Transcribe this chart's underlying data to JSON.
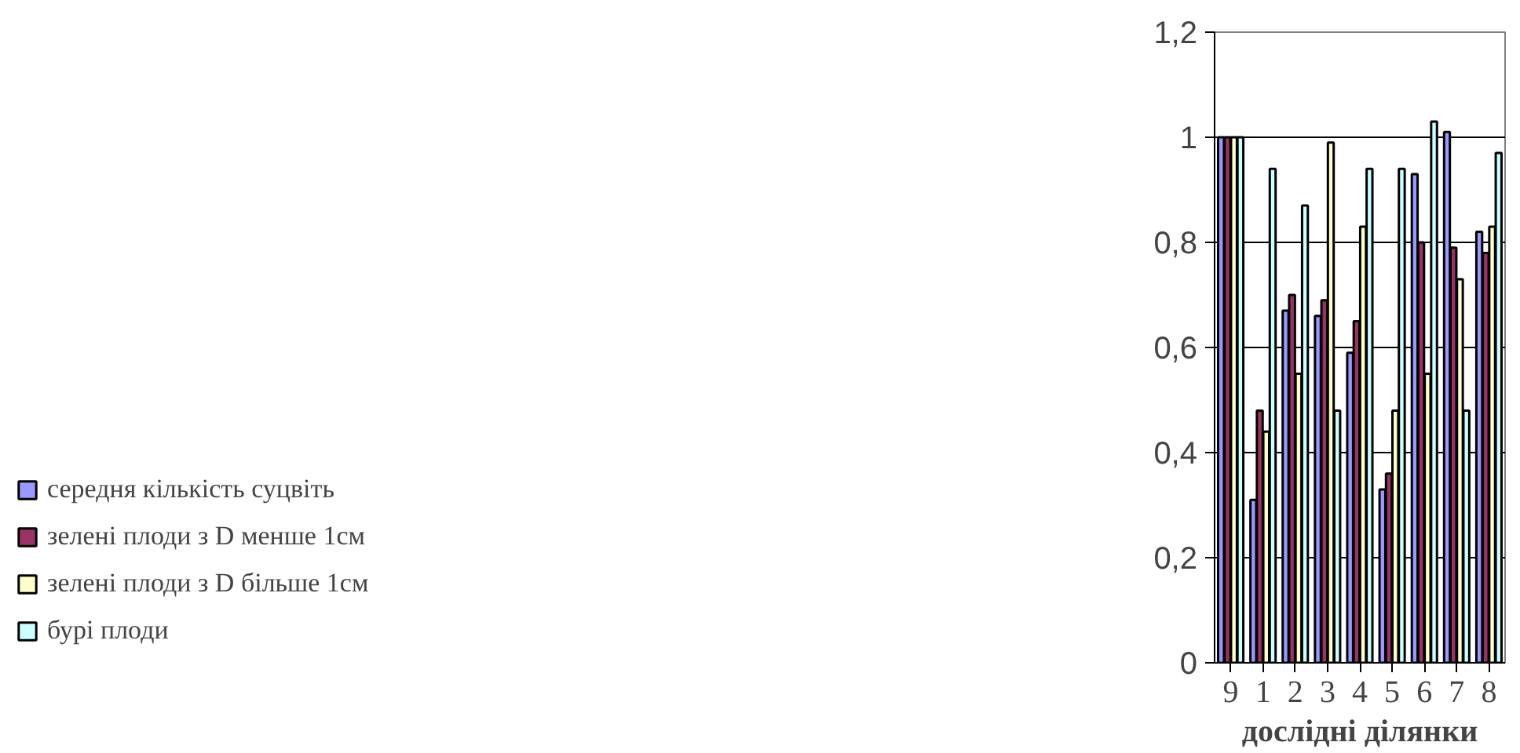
{
  "chart_data": {
    "type": "bar",
    "xlabel": "дослідні ділянки",
    "categories": [
      "9",
      "1",
      "2",
      "3",
      "4",
      "5",
      "6",
      "7",
      "8"
    ],
    "series": [
      {
        "name": "середня кількість суцвіть",
        "color": "#9999ff",
        "values": [
          1,
          0.31,
          0.67,
          0.66,
          0.59,
          0.33,
          0.93,
          1.01,
          0.82
        ]
      },
      {
        "name": "зелені плоди з D менше 1см",
        "color": "#993366",
        "values": [
          1,
          0.48,
          0.7,
          0.69,
          0.65,
          0.36,
          0.8,
          0.79,
          0.78
        ]
      },
      {
        "name": "зелені плоди з D більше 1см",
        "color": "#ffffcc",
        "values": [
          1,
          0.44,
          0.55,
          0.99,
          0.83,
          0.48,
          0.55,
          0.73,
          0.83
        ]
      },
      {
        "name": "бурі плоди",
        "color": "#ccffff",
        "values": [
          1,
          0.94,
          0.87,
          0.48,
          0.94,
          0.94,
          1.03,
          0.48,
          0.97
        ]
      }
    ],
    "ylim": [
      0,
      1.2
    ],
    "yticks": [
      0,
      {
        "value": 0.2,
        "label": "0,2"
      },
      {
        "value": 0.4,
        "label": "0,4"
      },
      {
        "value": 0.6,
        "label": "0,6"
      },
      {
        "value": 0.8,
        "label": "0,8"
      },
      1,
      {
        "value": 1.2,
        "label": "1,2"
      }
    ],
    "grid": "y",
    "legend": "left"
  }
}
